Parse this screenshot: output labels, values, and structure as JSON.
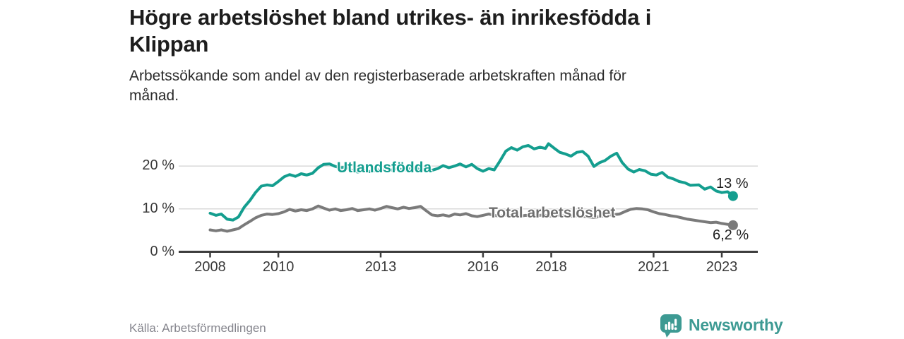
{
  "header": {
    "title_lines": [
      "Högre arbetslöshet bland utrikes- än inrikesfödda i",
      "Klippan"
    ],
    "subtitle_lines": [
      "Arbetssökande som andel av den registerbaserade arbetskraften månad för",
      "månad."
    ]
  },
  "footer": {
    "source": "Källa: Arbetsförmedlingen",
    "brand": "Newsworthy",
    "brand_color": "#3d9a93"
  },
  "chart_data": {
    "type": "line",
    "title": "Högre arbetslöshet bland utrikes- än inrikesfödda i Klippan",
    "subtitle": "Arbetssökande som andel av den registerbaserade arbetskraften månad för månad.",
    "xlabel": "",
    "ylabel": "",
    "xlim": [
      2007.1,
      2024.0
    ],
    "ylim": [
      0,
      27
    ],
    "grid": "horizontal",
    "legend_position": "inline-labels",
    "colors": {
      "axis": "#3d3d3d",
      "grid": "#d9d9d9",
      "tick_text": "#383838"
    },
    "x_ticks": {
      "values": [
        2008,
        2010,
        2013,
        2016,
        2018,
        2021,
        2023
      ],
      "labels": [
        "2008",
        "2010",
        "2013",
        "2016",
        "2018",
        "2021",
        "2023"
      ]
    },
    "y_ticks": {
      "values": [
        0,
        10,
        20
      ],
      "labels": [
        "0 %",
        "10 %",
        "20 %"
      ]
    },
    "series": [
      {
        "id": "utlandsfodda",
        "name": "Utlandsfödda",
        "color": "#149e8f",
        "end_label": "13 %",
        "end_value": 13.0,
        "points": [
          [
            2008.0,
            9.0
          ],
          [
            2008.17,
            8.5
          ],
          [
            2008.33,
            8.8
          ],
          [
            2008.5,
            7.6
          ],
          [
            2008.67,
            7.4
          ],
          [
            2008.83,
            8.1
          ],
          [
            2009.0,
            10.4
          ],
          [
            2009.17,
            12.0
          ],
          [
            2009.33,
            13.8
          ],
          [
            2009.5,
            15.3
          ],
          [
            2009.67,
            15.6
          ],
          [
            2009.83,
            15.4
          ],
          [
            2010.0,
            16.4
          ],
          [
            2010.17,
            17.5
          ],
          [
            2010.33,
            18.0
          ],
          [
            2010.5,
            17.6
          ],
          [
            2010.67,
            18.2
          ],
          [
            2010.83,
            17.9
          ],
          [
            2011.0,
            18.3
          ],
          [
            2011.17,
            19.6
          ],
          [
            2011.33,
            20.4
          ],
          [
            2011.5,
            20.5
          ],
          [
            2011.67,
            19.9
          ],
          [
            2011.83,
            19.6
          ],
          [
            2012.0,
            19.8
          ],
          [
            2012.17,
            18.9
          ],
          [
            2012.33,
            18.6
          ],
          [
            2012.5,
            19.0
          ],
          [
            2012.67,
            18.7
          ],
          [
            2012.83,
            18.9
          ],
          [
            2013.0,
            19.2
          ],
          [
            2013.17,
            18.9
          ],
          [
            2013.33,
            19.1
          ],
          [
            2013.5,
            19.4
          ],
          [
            2013.67,
            19.0
          ],
          [
            2013.83,
            19.3
          ],
          [
            2014.0,
            19.6
          ],
          [
            2014.17,
            19.1
          ],
          [
            2014.33,
            19.3
          ],
          [
            2014.5,
            19.0
          ],
          [
            2014.67,
            19.4
          ],
          [
            2014.83,
            20.1
          ],
          [
            2015.0,
            19.6
          ],
          [
            2015.17,
            20.0
          ],
          [
            2015.33,
            20.5
          ],
          [
            2015.5,
            19.8
          ],
          [
            2015.67,
            20.4
          ],
          [
            2015.83,
            19.4
          ],
          [
            2016.0,
            18.8
          ],
          [
            2016.17,
            19.4
          ],
          [
            2016.33,
            19.1
          ],
          [
            2016.5,
            21.2
          ],
          [
            2016.67,
            23.5
          ],
          [
            2016.83,
            24.3
          ],
          [
            2017.0,
            23.7
          ],
          [
            2017.17,
            24.5
          ],
          [
            2017.33,
            24.8
          ],
          [
            2017.5,
            24.0
          ],
          [
            2017.67,
            24.4
          ],
          [
            2017.83,
            24.1
          ],
          [
            2017.92,
            25.2
          ],
          [
            2018.08,
            24.2
          ],
          [
            2018.25,
            23.2
          ],
          [
            2018.42,
            22.8
          ],
          [
            2018.58,
            22.3
          ],
          [
            2018.75,
            23.2
          ],
          [
            2018.92,
            23.4
          ],
          [
            2019.08,
            22.3
          ],
          [
            2019.25,
            19.9
          ],
          [
            2019.42,
            20.8
          ],
          [
            2019.58,
            21.3
          ],
          [
            2019.75,
            22.3
          ],
          [
            2019.92,
            23.0
          ],
          [
            2020.08,
            20.8
          ],
          [
            2020.25,
            19.3
          ],
          [
            2020.42,
            18.6
          ],
          [
            2020.58,
            19.2
          ],
          [
            2020.75,
            18.9
          ],
          [
            2020.92,
            18.1
          ],
          [
            2021.08,
            17.9
          ],
          [
            2021.25,
            18.5
          ],
          [
            2021.42,
            17.4
          ],
          [
            2021.58,
            17.0
          ],
          [
            2021.75,
            16.4
          ],
          [
            2021.92,
            16.1
          ],
          [
            2022.08,
            15.5
          ],
          [
            2022.33,
            15.6
          ],
          [
            2022.5,
            14.6
          ],
          [
            2022.67,
            15.1
          ],
          [
            2022.83,
            14.2
          ],
          [
            2023.0,
            13.8
          ],
          [
            2023.17,
            14.0
          ],
          [
            2023.33,
            13.0
          ]
        ]
      },
      {
        "id": "total",
        "name": "Total arbetslöshet",
        "color": "#7a7a7a",
        "end_label": "6,2 %",
        "end_value": 6.2,
        "points": [
          [
            2008.0,
            5.1
          ],
          [
            2008.17,
            4.9
          ],
          [
            2008.33,
            5.1
          ],
          [
            2008.5,
            4.8
          ],
          [
            2008.67,
            5.1
          ],
          [
            2008.83,
            5.4
          ],
          [
            2009.0,
            6.3
          ],
          [
            2009.17,
            7.1
          ],
          [
            2009.33,
            7.9
          ],
          [
            2009.5,
            8.5
          ],
          [
            2009.67,
            8.8
          ],
          [
            2009.83,
            8.7
          ],
          [
            2010.0,
            8.9
          ],
          [
            2010.17,
            9.3
          ],
          [
            2010.33,
            9.9
          ],
          [
            2010.5,
            9.5
          ],
          [
            2010.67,
            9.8
          ],
          [
            2010.83,
            9.6
          ],
          [
            2011.0,
            10.0
          ],
          [
            2011.17,
            10.7
          ],
          [
            2011.33,
            10.2
          ],
          [
            2011.5,
            9.7
          ],
          [
            2011.67,
            10.0
          ],
          [
            2011.83,
            9.6
          ],
          [
            2012.0,
            9.8
          ],
          [
            2012.17,
            10.1
          ],
          [
            2012.33,
            9.6
          ],
          [
            2012.5,
            9.8
          ],
          [
            2012.67,
            10.0
          ],
          [
            2012.83,
            9.7
          ],
          [
            2013.0,
            10.1
          ],
          [
            2013.17,
            10.6
          ],
          [
            2013.33,
            10.3
          ],
          [
            2013.5,
            10.0
          ],
          [
            2013.67,
            10.4
          ],
          [
            2013.83,
            10.1
          ],
          [
            2014.0,
            10.3
          ],
          [
            2014.17,
            10.6
          ],
          [
            2014.33,
            9.6
          ],
          [
            2014.5,
            8.6
          ],
          [
            2014.67,
            8.4
          ],
          [
            2014.83,
            8.6
          ],
          [
            2015.0,
            8.3
          ],
          [
            2015.17,
            8.8
          ],
          [
            2015.33,
            8.6
          ],
          [
            2015.5,
            8.9
          ],
          [
            2015.67,
            8.4
          ],
          [
            2015.83,
            8.2
          ],
          [
            2016.0,
            8.5
          ],
          [
            2016.17,
            8.8
          ],
          [
            2016.33,
            8.5
          ],
          [
            2016.5,
            8.3
          ],
          [
            2016.67,
            8.6
          ],
          [
            2016.83,
            8.4
          ],
          [
            2017.0,
            8.2
          ],
          [
            2017.25,
            8.5
          ],
          [
            2017.5,
            8.3
          ],
          [
            2017.75,
            8.6
          ],
          [
            2018.0,
            8.3
          ],
          [
            2018.25,
            8.5
          ],
          [
            2018.5,
            8.2
          ],
          [
            2018.75,
            8.4
          ],
          [
            2019.0,
            8.2
          ],
          [
            2019.25,
            8.0
          ],
          [
            2019.5,
            8.3
          ],
          [
            2019.75,
            8.6
          ],
          [
            2020.0,
            8.8
          ],
          [
            2020.17,
            9.4
          ],
          [
            2020.33,
            9.9
          ],
          [
            2020.5,
            10.1
          ],
          [
            2020.67,
            10.0
          ],
          [
            2020.83,
            9.8
          ],
          [
            2021.0,
            9.3
          ],
          [
            2021.17,
            8.9
          ],
          [
            2021.33,
            8.7
          ],
          [
            2021.5,
            8.4
          ],
          [
            2021.67,
            8.2
          ],
          [
            2021.83,
            7.9
          ],
          [
            2022.0,
            7.6
          ],
          [
            2022.17,
            7.4
          ],
          [
            2022.33,
            7.2
          ],
          [
            2022.5,
            7.0
          ],
          [
            2022.67,
            6.8
          ],
          [
            2022.83,
            6.9
          ],
          [
            2023.0,
            6.6
          ],
          [
            2023.17,
            6.4
          ],
          [
            2023.33,
            6.2
          ]
        ]
      }
    ]
  }
}
